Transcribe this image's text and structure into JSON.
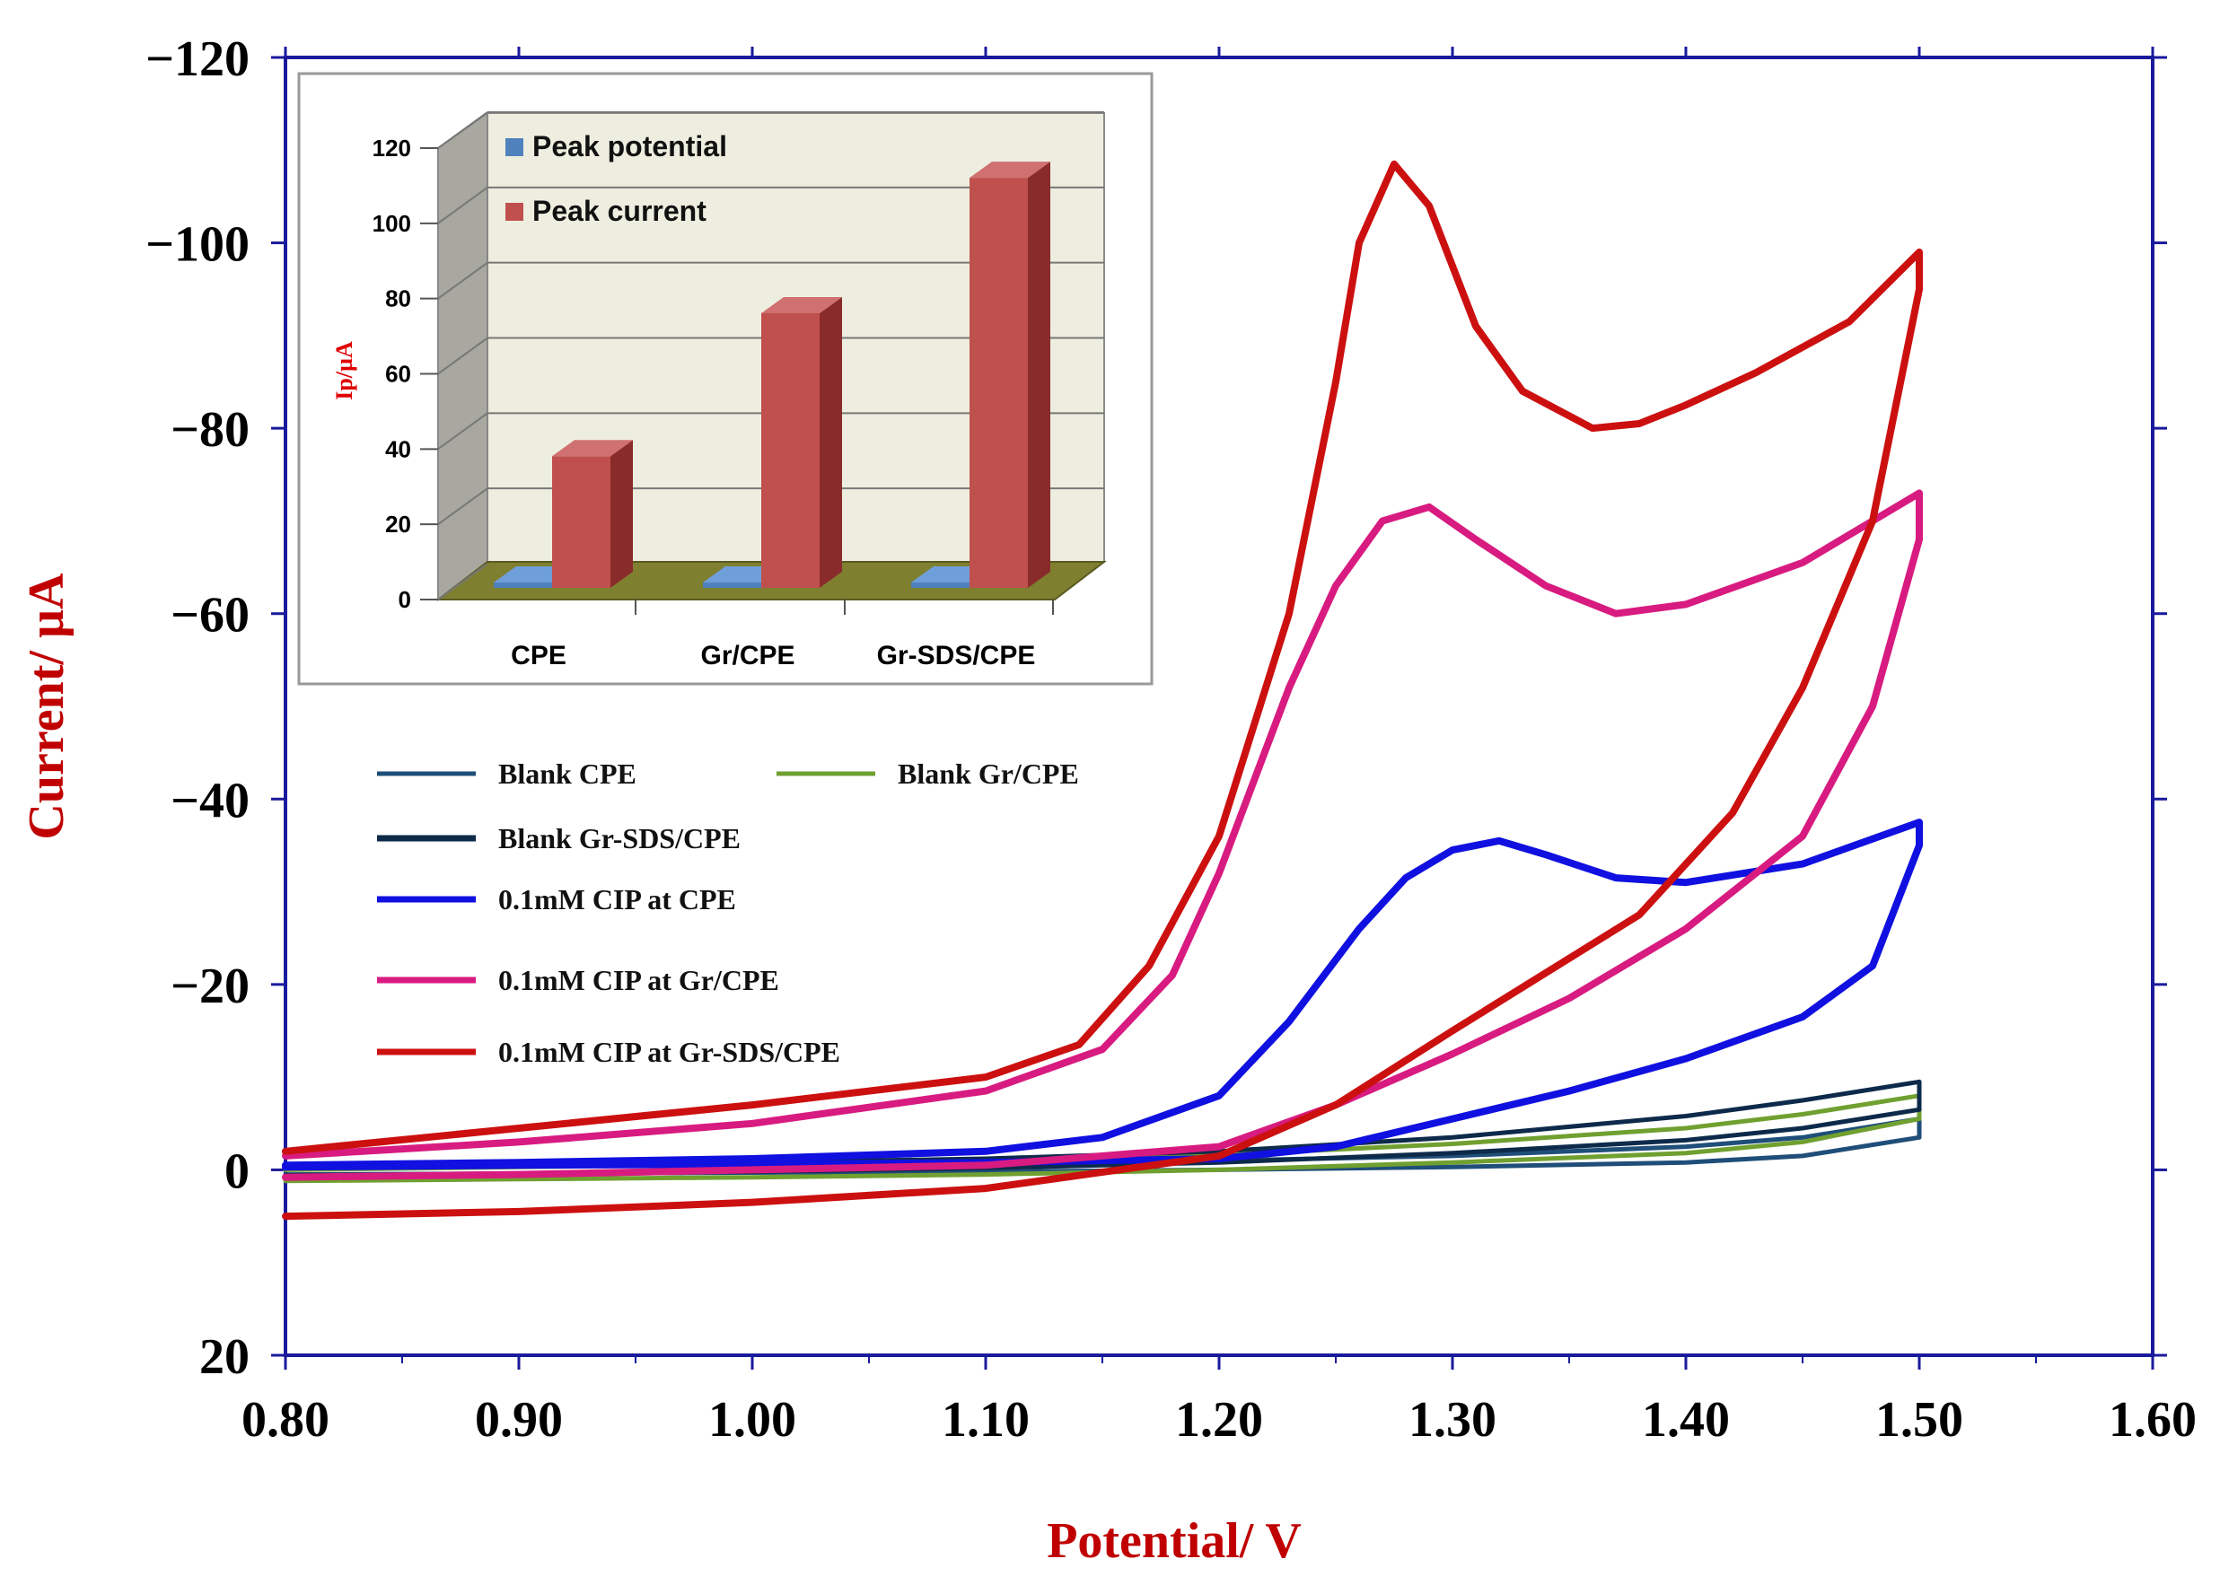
{
  "chart_data": [
    {
      "type": "line",
      "title": "",
      "xlabel": "Potential/ V",
      "ylabel": "Current/ µA",
      "xlim": [
        0.8,
        1.6
      ],
      "ylim": [
        20,
        -120
      ],
      "y_axis_inverted": true,
      "grid": false,
      "xticks": [
        "0.80",
        "0.90",
        "1.00",
        "1.10",
        "1.20",
        "1.30",
        "1.40",
        "1.50",
        "1.60"
      ],
      "yticks": [
        "20",
        "0",
        "−20",
        "−40",
        "−60",
        "−80",
        "−100",
        "−120"
      ],
      "legend_position": "center-left",
      "series": [
        {
          "name": "Blank CPE",
          "color": "#1f4e79",
          "x": [
            0.8,
            0.9,
            1.0,
            1.1,
            1.2,
            1.3,
            1.4,
            1.45,
            1.5,
            1.5,
            1.45,
            1.4,
            1.3,
            1.2,
            1.1,
            1.0,
            0.9,
            0.8
          ],
          "y": [
            0.5,
            0.4,
            0.3,
            0.2,
            0.0,
            -0.3,
            -0.8,
            -1.5,
            -3.5,
            -5.5,
            -3.5,
            -2.5,
            -1.5,
            -1.0,
            -0.8,
            -0.6,
            -0.5,
            -0.3
          ]
        },
        {
          "name": "Blank Gr/CPE",
          "color": "#70a030",
          "x": [
            0.8,
            0.9,
            1.0,
            1.1,
            1.2,
            1.3,
            1.4,
            1.45,
            1.5,
            1.5,
            1.45,
            1.4,
            1.3,
            1.2,
            1.1,
            1.0,
            0.9,
            0.8
          ],
          "y": [
            1.2,
            1.0,
            0.8,
            0.5,
            0.0,
            -0.8,
            -1.8,
            -3.0,
            -5.5,
            -8.0,
            -6.0,
            -4.5,
            -2.8,
            -1.6,
            -1.0,
            -0.6,
            -0.3,
            0.0
          ]
        },
        {
          "name": "Blank Gr-SDS/CPE",
          "color": "#0d2a4a",
          "x": [
            0.8,
            0.9,
            1.0,
            1.1,
            1.2,
            1.3,
            1.4,
            1.45,
            1.5,
            1.5,
            1.45,
            1.4,
            1.3,
            1.2,
            1.1,
            1.0,
            0.9,
            0.8
          ],
          "y": [
            0.6,
            0.4,
            0.2,
            -0.2,
            -0.8,
            -1.8,
            -3.2,
            -4.5,
            -6.5,
            -9.5,
            -7.5,
            -5.8,
            -3.5,
            -2.0,
            -1.2,
            -0.8,
            -0.5,
            -0.2
          ]
        },
        {
          "name": "0.1mM CIP at CPE",
          "color": "#1010e0",
          "x": [
            0.8,
            0.9,
            1.0,
            1.1,
            1.15,
            1.2,
            1.23,
            1.26,
            1.28,
            1.3,
            1.32,
            1.34,
            1.37,
            1.4,
            1.45,
            1.5,
            1.5,
            1.48,
            1.45,
            1.4,
            1.35,
            1.3,
            1.25,
            1.2,
            1.1,
            1.0,
            0.9,
            0.8
          ],
          "y": [
            -0.5,
            -0.8,
            -1.2,
            -2.0,
            -3.5,
            -8.0,
            -16.0,
            -26.0,
            -31.5,
            -34.5,
            -35.5,
            -34.0,
            -31.5,
            -31.0,
            -33.0,
            -37.5,
            -35.0,
            -22.0,
            -16.5,
            -12.0,
            -8.5,
            -5.5,
            -2.5,
            -1.2,
            -0.8,
            -0.6,
            -0.5,
            -0.3
          ]
        },
        {
          "name": "0.1mM CIP at Gr/CPE",
          "color": "#d81b80",
          "x": [
            0.8,
            0.9,
            1.0,
            1.1,
            1.15,
            1.18,
            1.2,
            1.23,
            1.25,
            1.27,
            1.29,
            1.31,
            1.34,
            1.37,
            1.4,
            1.45,
            1.5,
            1.5,
            1.48,
            1.45,
            1.4,
            1.35,
            1.3,
            1.25,
            1.2,
            1.1,
            1.0,
            0.9,
            0.8
          ],
          "y": [
            -1.5,
            -3.0,
            -5.0,
            -8.5,
            -13.0,
            -21.0,
            -32.0,
            -52.0,
            -63.0,
            -70.0,
            -71.5,
            -68.0,
            -63.0,
            -60.0,
            -61.0,
            -65.5,
            -73.0,
            -68.0,
            -50.0,
            -36.0,
            -26.0,
            -18.5,
            -12.5,
            -7.0,
            -2.5,
            -0.5,
            0.0,
            0.5,
            0.8
          ]
        },
        {
          "name": "0.1mM CIP at Gr-SDS/CPE",
          "color": "#cc1010",
          "x": [
            0.8,
            0.9,
            1.0,
            1.1,
            1.14,
            1.17,
            1.2,
            1.23,
            1.25,
            1.26,
            1.275,
            1.29,
            1.31,
            1.33,
            1.36,
            1.38,
            1.4,
            1.43,
            1.47,
            1.5,
            1.5,
            1.48,
            1.45,
            1.42,
            1.38,
            1.3,
            1.25,
            1.2,
            1.1,
            1.0,
            0.9,
            0.8
          ],
          "y": [
            -2.0,
            -4.5,
            -7.0,
            -10.0,
            -13.5,
            -22.0,
            -36.0,
            -60.0,
            -85.0,
            -100.0,
            -108.5,
            -104.0,
            -91.0,
            -84.0,
            -80.0,
            -80.5,
            -82.5,
            -86.0,
            -91.5,
            -99.0,
            -95.0,
            -70.0,
            -52.0,
            -38.5,
            -27.5,
            -15.0,
            -7.0,
            -1.5,
            2.0,
            3.5,
            4.5,
            5.0
          ]
        }
      ]
    },
    {
      "type": "bar",
      "style": "3d",
      "title": "",
      "xlabel": "",
      "ylabel": "Ip/µA",
      "ylim": [
        0,
        120
      ],
      "yticks": [
        "0",
        "20",
        "40",
        "60",
        "80",
        "100",
        "120"
      ],
      "categories": [
        "CPE",
        "Gr/CPE",
        "Gr-SDS/CPE"
      ],
      "legend_position": "top-left",
      "grid": true,
      "series": [
        {
          "name": "Peak potential",
          "color": "#4f81bd",
          "values": [
            1.3,
            1.28,
            1.27
          ]
        },
        {
          "name": "Peak current",
          "color": "#c0504d",
          "values": [
            35,
            73,
            109
          ]
        }
      ]
    }
  ],
  "colors": {
    "frame": "#1a1a9c",
    "axis_title": "#c00000",
    "inset_wall": "#eeeee0",
    "inset_side_wall": "#a8a8a0",
    "inset_floor": "#7f7f30"
  }
}
